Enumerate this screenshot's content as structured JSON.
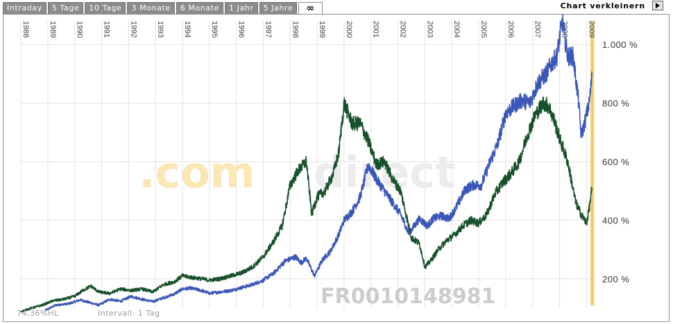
{
  "tabs": [
    {
      "label": "Intraday",
      "active": false
    },
    {
      "label": "5 Tage",
      "active": false
    },
    {
      "label": "10 Tage",
      "active": false
    },
    {
      "label": "3 Monate",
      "active": false
    },
    {
      "label": "6 Monate",
      "active": false
    },
    {
      "label": "1 Jahr",
      "active": false
    },
    {
      "label": "5 Jahre",
      "active": false
    },
    {
      "label": "∞",
      "active": true
    }
  ],
  "toolbar": {
    "shrink_label": "Chart verkleinern",
    "shrink_icon": "play-arrow-icon"
  },
  "footer": {
    "hl": "74,36%HL",
    "interval": "Intervall: 1 Tag"
  },
  "watermark": {
    "brand_a": ".com",
    "brand_b": "direct",
    "isin": "FR0010148981"
  },
  "colors": {
    "series_blue": "#3a56b8",
    "series_green": "#17502a",
    "highlight": "#f3cd62",
    "watermark_orange": "#fbe7b3",
    "watermark_gray": "#ececec",
    "isin": "#cccccc",
    "grid": "#e3e3e3"
  },
  "chart_data": {
    "type": "line",
    "x_ticks": [
      "1988",
      "1989",
      "1990",
      "1991",
      "1992",
      "1993",
      "1994",
      "1995",
      "1996",
      "1997",
      "1998",
      "1999",
      "2000",
      "2001",
      "2002",
      "2003",
      "2004",
      "2005",
      "2006",
      "2007",
      "2008",
      "2009"
    ],
    "y_ticks": [
      "1.000 %",
      "800 %",
      "600 %",
      "400 %",
      "200 %"
    ],
    "y_tick_values": [
      1000,
      800,
      600,
      400,
      200
    ],
    "xlim": [
      1988.0,
      2009.3
    ],
    "ylim": [
      100,
      1100
    ],
    "highlight_x": 2009.2,
    "series": [
      {
        "color_key": "series_blue",
        "x": [
          1988.9,
          1989.3,
          1989.8,
          1990.2,
          1990.5,
          1990.9,
          1991.3,
          1991.7,
          1992.1,
          1992.5,
          1992.9,
          1993.3,
          1993.7,
          1994.0,
          1994.3,
          1994.7,
          1995.0,
          1995.4,
          1995.8,
          1996.2,
          1996.6,
          1997.0,
          1997.4,
          1997.8,
          1998.2,
          1998.4,
          1998.6,
          1998.9,
          1999.2,
          1999.5,
          1999.8,
          2000.0,
          2000.3,
          2000.6,
          2000.9,
          2001.2,
          2001.5,
          2001.8,
          2002.1,
          2002.4,
          2002.8,
          2003.1,
          2003.3,
          2003.6,
          2003.9,
          2004.2,
          2004.5,
          2004.8,
          2005.1,
          2005.4,
          2005.7,
          2006.0,
          2006.3,
          2006.6,
          2006.9,
          2007.2,
          2007.5,
          2007.7,
          2007.9,
          2008.1,
          2008.3,
          2008.5,
          2008.7,
          2008.8,
          2008.9,
          2009.0,
          2009.1,
          2009.2
        ],
        "values": [
          92,
          110,
          115,
          128,
          120,
          110,
          130,
          123,
          140,
          130,
          122,
          135,
          148,
          165,
          168,
          160,
          150,
          155,
          160,
          170,
          180,
          195,
          220,
          260,
          275,
          255,
          270,
          210,
          265,
          295,
          350,
          400,
          430,
          480,
          590,
          540,
          500,
          460,
          420,
          355,
          405,
          380,
          405,
          415,
          405,
          450,
          505,
          520,
          520,
          595,
          660,
          765,
          790,
          810,
          800,
          870,
          900,
          935,
          960,
          1080,
          960,
          960,
          810,
          690,
          720,
          760,
          800,
          890
        ]
      },
      {
        "color_key": "series_green",
        "x": [
          1988.0,
          1988.4,
          1988.8,
          1989.2,
          1989.6,
          1990.0,
          1990.3,
          1990.6,
          1990.9,
          1991.3,
          1991.7,
          1992.1,
          1992.5,
          1992.9,
          1993.3,
          1993.7,
          1994.0,
          1994.3,
          1994.7,
          1995.0,
          1995.4,
          1995.8,
          1996.2,
          1996.6,
          1997.0,
          1997.4,
          1997.7,
          1998.0,
          1998.3,
          1998.6,
          1998.8,
          1999.0,
          1999.3,
          1999.6,
          1999.8,
          2000.0,
          2000.3,
          2000.6,
          2000.9,
          2001.2,
          2001.5,
          2001.8,
          2002.1,
          2002.5,
          2002.8,
          2003.0,
          2003.2,
          2003.5,
          2003.8,
          2004.1,
          2004.4,
          2004.7,
          2005.0,
          2005.3,
          2005.6,
          2005.9,
          2006.2,
          2006.5,
          2006.8,
          2007.1,
          2007.4,
          2007.6,
          2007.8,
          2008.0,
          2008.3,
          2008.6,
          2008.8,
          2009.0,
          2009.1,
          2009.2
        ],
        "values": [
          88,
          100,
          110,
          125,
          130,
          140,
          160,
          175,
          155,
          150,
          165,
          160,
          165,
          155,
          180,
          190,
          210,
          205,
          200,
          195,
          200,
          210,
          220,
          240,
          275,
          330,
          380,
          520,
          570,
          600,
          420,
          480,
          500,
          560,
          630,
          800,
          730,
          730,
          670,
          590,
          600,
          540,
          500,
          340,
          320,
          240,
          260,
          300,
          330,
          350,
          380,
          400,
          390,
          420,
          490,
          530,
          560,
          600,
          690,
          760,
          800,
          790,
          740,
          680,
          600,
          460,
          420,
          390,
          440,
          510
        ]
      }
    ]
  }
}
